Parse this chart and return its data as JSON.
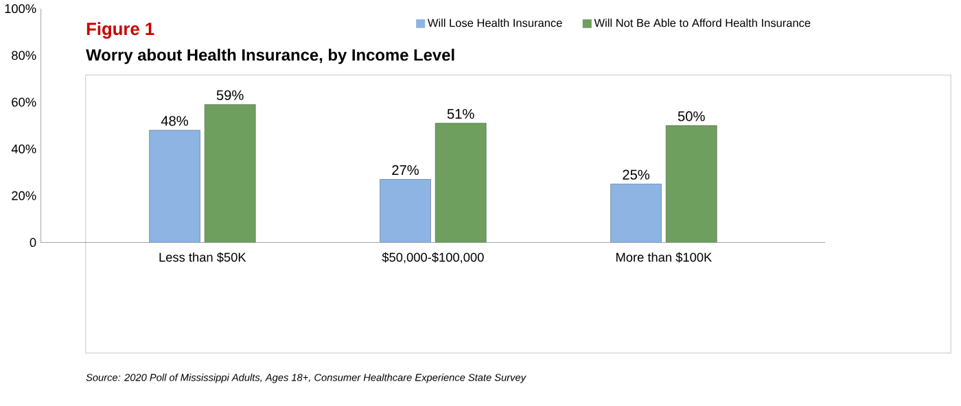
{
  "chart_data": {
    "type": "bar",
    "title": "Figure 1",
    "subtitle": "Worry about Health Insurance, by Income Level",
    "categories": [
      "Less than $50K",
      "$50,000-$100,000",
      "More than $100K"
    ],
    "series": [
      {
        "name": "Will Lose Health Insurance",
        "color": "#8db4e2",
        "values": [
          48,
          27,
          25
        ],
        "value_labels": [
          "48%",
          "27%",
          "25%"
        ]
      },
      {
        "name": "Will Not Be Able to Afford Health Insurance",
        "color": "#6f9f5f",
        "values": [
          59,
          51,
          50
        ],
        "value_labels": [
          "59%",
          "51%",
          "50%"
        ]
      }
    ],
    "ylim": [
      0,
      100
    ],
    "yticks": [
      {
        "value": 0,
        "label": "0"
      },
      {
        "value": 20,
        "label": "20%"
      },
      {
        "value": 40,
        "label": "40%"
      },
      {
        "value": 60,
        "label": "60%"
      },
      {
        "value": 80,
        "label": "80%"
      },
      {
        "value": 100,
        "label": "100%"
      }
    ],
    "legend": "top right",
    "grid": false,
    "annotations": [
      "Source: 2020 Poll of Mississippi Adults, Ages 18+, Consumer Healthcare Experience State Survey"
    ]
  }
}
